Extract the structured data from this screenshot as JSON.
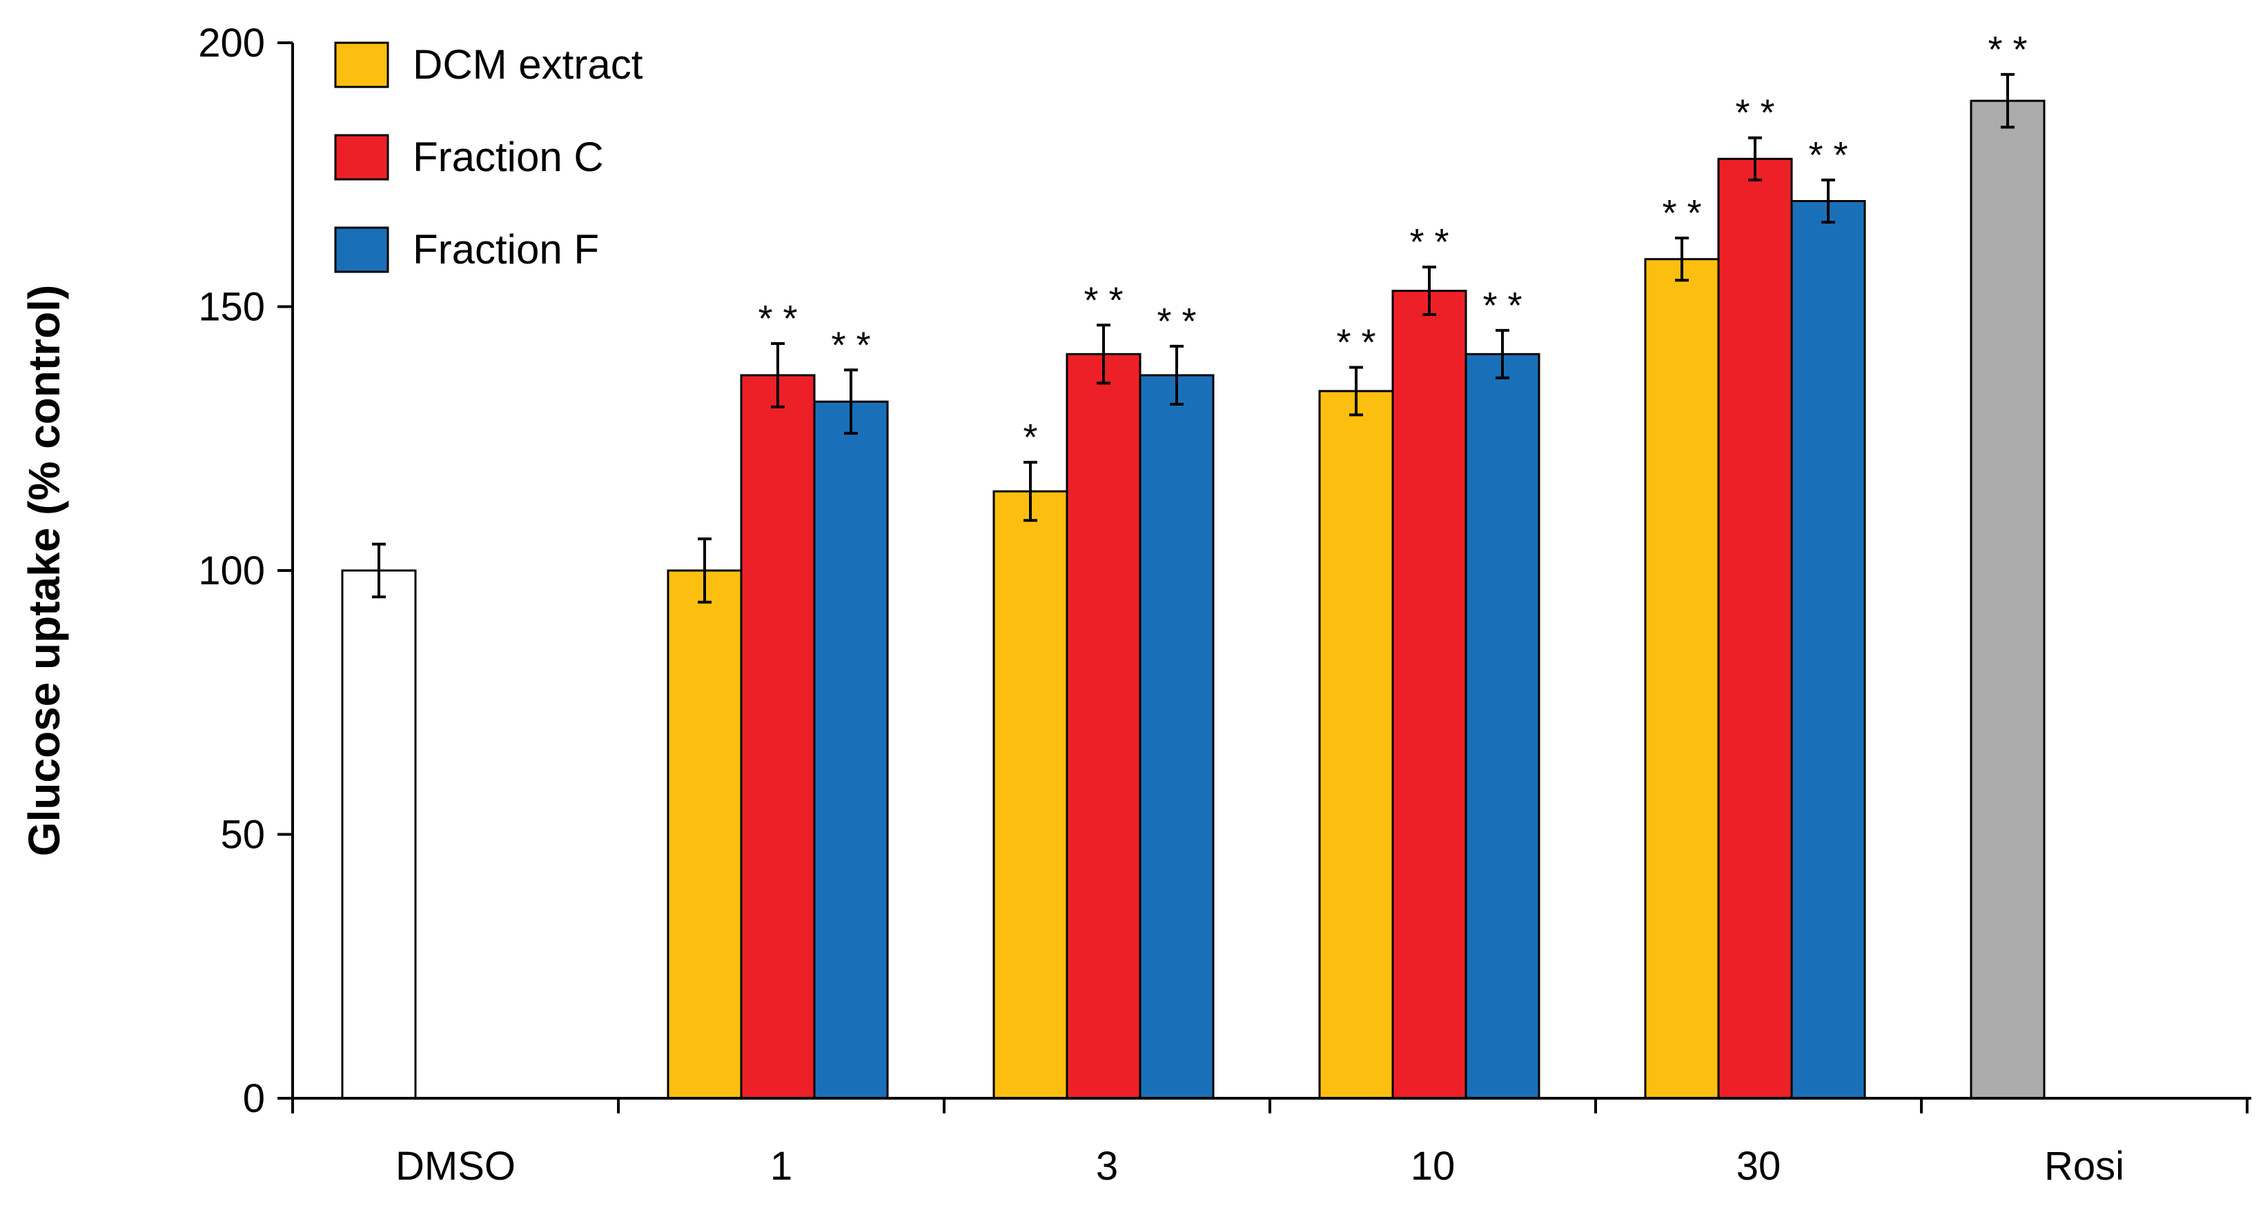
{
  "chart_data": {
    "type": "bar",
    "title": "",
    "xlabel": "",
    "ylabel": "Glucose uptake (% control)",
    "ylim": [
      0,
      200
    ],
    "yticks": [
      0,
      50,
      100,
      150,
      200
    ],
    "categories": [
      "DMSO",
      "1",
      "3",
      "10",
      "30",
      "Rosi"
    ],
    "series": [
      {
        "name": "DCM extract",
        "color": "#FCBF10",
        "values": [
          null,
          100,
          115,
          134,
          159,
          null
        ],
        "errors": [
          null,
          6,
          5.5,
          4.5,
          4,
          null
        ],
        "significance": [
          "",
          "",
          "*",
          "**",
          "**",
          ""
        ]
      },
      {
        "name": "Fraction C",
        "color": "#EE2027",
        "values": [
          null,
          137,
          141,
          153,
          178,
          null
        ],
        "errors": [
          null,
          6,
          5.5,
          4.5,
          4,
          null
        ],
        "significance": [
          "",
          "**",
          "**",
          "**",
          "**",
          ""
        ]
      },
      {
        "name": "Fraction F",
        "color": "#1A70B8",
        "values": [
          null,
          132,
          137,
          141,
          170,
          null
        ],
        "errors": [
          null,
          6,
          5.5,
          4.5,
          4,
          null
        ],
        "significance": [
          "",
          "**",
          "**",
          "**",
          "**",
          ""
        ]
      }
    ],
    "controls": [
      {
        "category": "DMSO",
        "value": 100,
        "error": 5,
        "color": "#FFFFFF",
        "significance": ""
      },
      {
        "category": "Rosi",
        "value": 189,
        "error": 5,
        "color": "#ABABAB",
        "significance": "**"
      }
    ],
    "legend": {
      "position": "top-left",
      "entries": [
        "DCM extract",
        "Fraction C",
        "Fraction F"
      ]
    }
  }
}
